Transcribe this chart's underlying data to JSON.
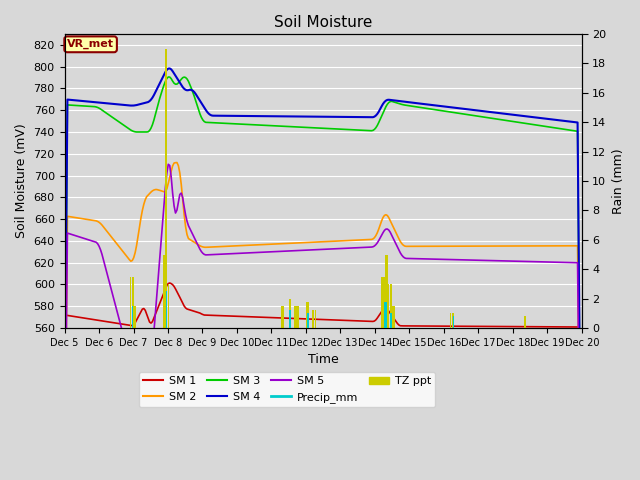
{
  "title": "Soil Moisture",
  "xlabel": "Time",
  "ylabel_left": "Soil Moisture (mV)",
  "ylabel_right": "Rain (mm)",
  "ylim_left": [
    560,
    830
  ],
  "ylim_right": [
    0,
    20
  ],
  "background_color": "#d8d8d8",
  "plot_bg_color": "#d8d8d8",
  "annotation_label": "VR_met",
  "annotation_color": "#8B0000",
  "annotation_bg": "#ffffaa",
  "colors": {
    "SM1": "#cc0000",
    "SM2": "#ff9900",
    "SM3": "#00cc00",
    "SM4": "#0000cc",
    "SM5": "#9900cc",
    "Precip_mm": "#00cccc",
    "TZ_ppt": "#cccc00"
  },
  "x_tick_labels": [
    "Dec 5",
    "Dec 6",
    "Dec 7",
    "Dec 8",
    "Dec 9",
    "Dec 10",
    "Dec 11",
    "Dec 12",
    "Dec 13",
    "Dec 14",
    "Dec 15",
    "Dec 16",
    "Dec 17",
    "Dec 18",
    "Dec 19",
    "Dec 20"
  ],
  "n_days": 15,
  "pts_per_day": 24
}
